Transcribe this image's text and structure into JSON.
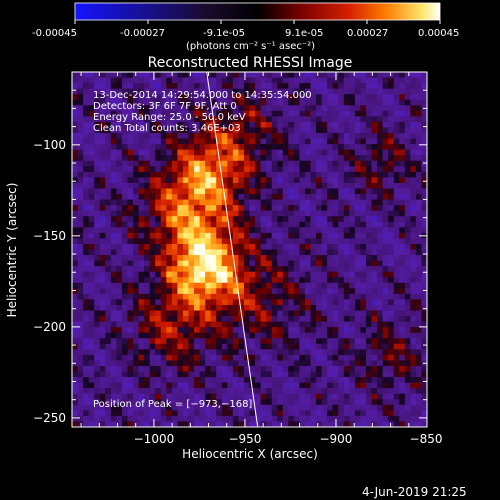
{
  "colorbar": {
    "ticks": [
      "-0.00045",
      "-0.00027",
      "-9.1e-05",
      "9.1e-05",
      "0.00027",
      "0.00045"
    ],
    "unit_label": "(photons cm⁻² s⁻¹ asec⁻²)",
    "range": [
      -0.00045,
      0.00045
    ]
  },
  "colors": {
    "background": "#000000",
    "text": "#ffffff",
    "limb": "#ffffff"
  },
  "chart_data": {
    "type": "heatmap",
    "title": "Reconstructed RHESSI Image",
    "xlabel": "Heliocentric X (arcsec)",
    "ylabel": "Heliocentric Y (arcsec)",
    "xlim": [
      -1045,
      -850
    ],
    "ylim": [
      -255,
      -60
    ],
    "x_ticks": [
      -1000,
      -950,
      -900,
      -850
    ],
    "y_ticks": [
      -100,
      -150,
      -200,
      -250
    ],
    "x_tick_labels": [
      "−1000",
      "−950",
      "−900",
      "−850"
    ],
    "y_tick_labels": [
      "−100",
      "−150",
      "−200",
      "−250"
    ],
    "annotations": [
      "13-Dec-2014 14:29:54.000 to 14:35:54.000",
      "Detectors: 3F 6F 7F 9F, Att 0",
      "Energy Range: 25.0 - 50.0 keV",
      "Clean     Total counts: 3.46E+03"
    ],
    "peak_label": "Position of Peak = [−973,−168]",
    "peak": {
      "x": -973,
      "y": -168
    },
    "limb_line": {
      "x_top": -971,
      "x_bottom": -943
    },
    "sources": [
      {
        "x": -972,
        "y": -168,
        "sigma": 14,
        "amp": 1.0
      },
      {
        "x": -980,
        "y": -135,
        "sigma": 18,
        "amp": 0.75
      },
      {
        "x": -967,
        "y": -110,
        "sigma": 14,
        "amp": 0.55
      },
      {
        "x": -990,
        "y": -200,
        "sigma": 16,
        "amp": 0.45
      },
      {
        "x": -942,
        "y": -185,
        "sigma": 18,
        "amp": 0.35
      },
      {
        "x": -950,
        "y": -90,
        "sigma": 14,
        "amp": 0.3
      },
      {
        "x": -875,
        "y": -110,
        "sigma": 12,
        "amp": 0.3
      },
      {
        "x": -870,
        "y": -215,
        "sigma": 14,
        "amp": 0.28
      }
    ]
  },
  "timestamp": "4-Jun-2019 21:25"
}
